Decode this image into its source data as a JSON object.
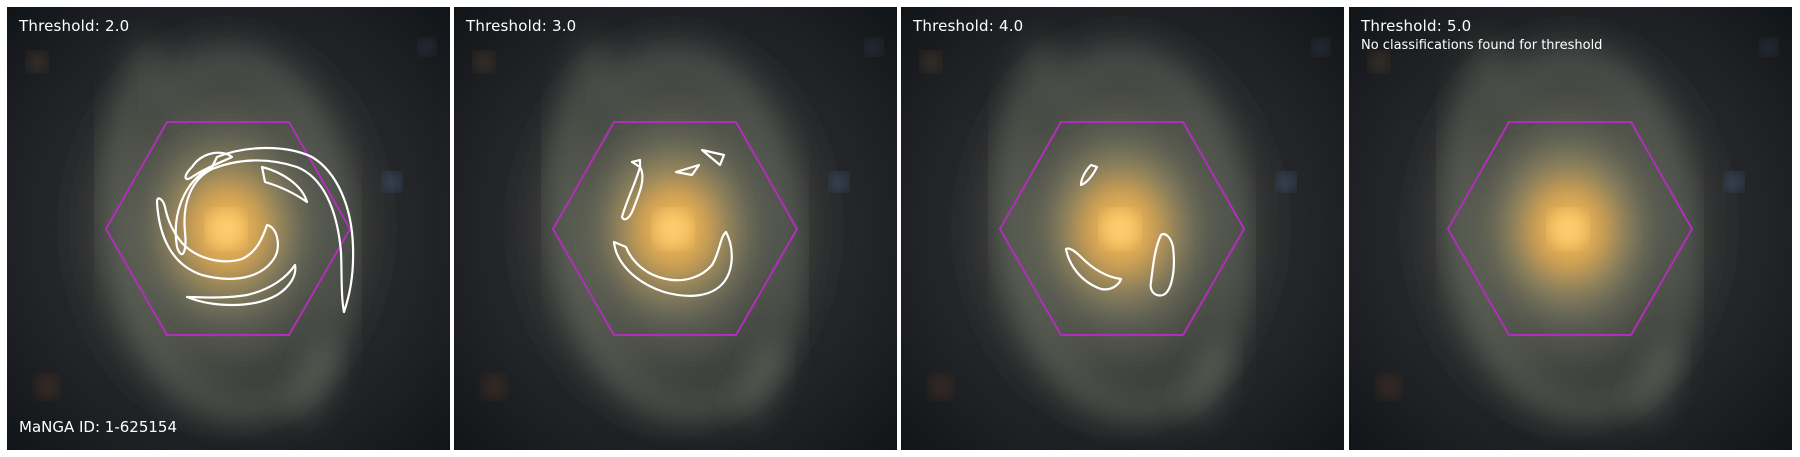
{
  "figure": {
    "manga_id_label": "MaNGA ID: 1-625154",
    "hexagon_color": "#b02fb8",
    "contour_color": "#ffffff",
    "panels": [
      {
        "threshold_label": "Threshold: 2.0",
        "note": ""
      },
      {
        "threshold_label": "Threshold: 3.0",
        "note": ""
      },
      {
        "threshold_label": "Threshold: 4.0",
        "note": ""
      },
      {
        "threshold_label": "Threshold: 5.0",
        "note": "No classifications found for threshold"
      }
    ]
  }
}
